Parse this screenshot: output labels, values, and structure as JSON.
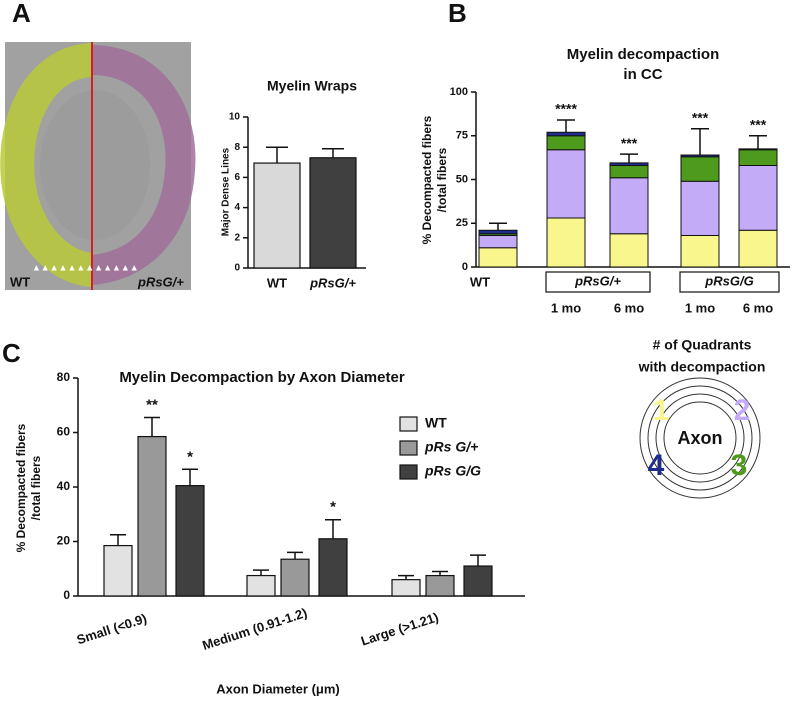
{
  "panel_labels": [
    "A",
    "B",
    "C"
  ],
  "image": {
    "labels": [
      "WT",
      "pRsG/+"
    ]
  },
  "chart_data": [
    {
      "type": "bar",
      "title": "Myelin Wraps",
      "ylabel": "Major Dense Lines",
      "categories": [
        "WT",
        "pRsG/+"
      ],
      "values": [
        6.95,
        7.3
      ],
      "errors": [
        1.05,
        0.6
      ],
      "colors": [
        "#d9d9d9",
        "#404040"
      ],
      "ylim": [
        0,
        10
      ],
      "yticks": [
        0,
        2,
        4,
        6,
        8,
        10
      ]
    },
    {
      "type": "stacked_bar",
      "title": [
        "Myelin decompaction",
        "in CC"
      ],
      "ylabel": [
        "% Decompacted fibers",
        "/total fibers"
      ],
      "categories": [
        "WT",
        "1 mo",
        "6 mo",
        "1 mo",
        "6 mo"
      ],
      "groups": [
        "pRsG/+",
        "pRsG/G"
      ],
      "series": [
        {
          "name": "1",
          "color": "#f8f68c",
          "values": [
            11,
            28,
            19,
            18,
            21
          ]
        },
        {
          "name": "2",
          "color": "#c3abf7",
          "values": [
            7,
            39,
            32,
            31,
            37
          ]
        },
        {
          "name": "3",
          "color": "#4d9a1c",
          "values": [
            1,
            8,
            7,
            14,
            9
          ]
        },
        {
          "name": "4",
          "color": "#1f2c8c",
          "values": [
            2,
            2,
            1.5,
            1,
            0.5
          ]
        }
      ],
      "errors": [
        4,
        7,
        5,
        15,
        7.5
      ],
      "annotations": [
        null,
        "****",
        "***",
        "***",
        "***"
      ],
      "ylim": [
        0,
        100
      ],
      "yticks": [
        0,
        25,
        50,
        75,
        100
      ]
    },
    {
      "type": "grouped_bar",
      "title": "Myelin Decompaction by Axon Diameter",
      "ylabel": [
        "% Decompacted fibers",
        "/total fibers"
      ],
      "xlabel": "Axon Diameter (μm)",
      "categories": [
        "Small (<0.9)",
        "Medium (0.91-1.2)",
        "Large (>1.21)"
      ],
      "series": [
        {
          "name": "WT",
          "color": "#e2e2e2",
          "values": [
            18.5,
            7.5,
            6
          ],
          "errors": [
            4,
            2,
            1.5
          ],
          "annotations": [
            null,
            null,
            null
          ]
        },
        {
          "name": "pRs G/+",
          "color": "#999999",
          "values": [
            58.5,
            13.5,
            7.5
          ],
          "errors": [
            7,
            2.5,
            1.5
          ],
          "annotations": [
            "**",
            null,
            null
          ]
        },
        {
          "name": "pRs G/G",
          "color": "#404040",
          "values": [
            40.5,
            21,
            11
          ],
          "errors": [
            6,
            7,
            4
          ],
          "annotations": [
            "*",
            "*",
            null
          ]
        }
      ],
      "ylim": [
        0,
        80
      ],
      "yticks": [
        0,
        20,
        40,
        60,
        80
      ]
    }
  ],
  "diagram": {
    "title": [
      "# of Quadrants",
      "with decompaction"
    ],
    "center": "Axon"
  }
}
